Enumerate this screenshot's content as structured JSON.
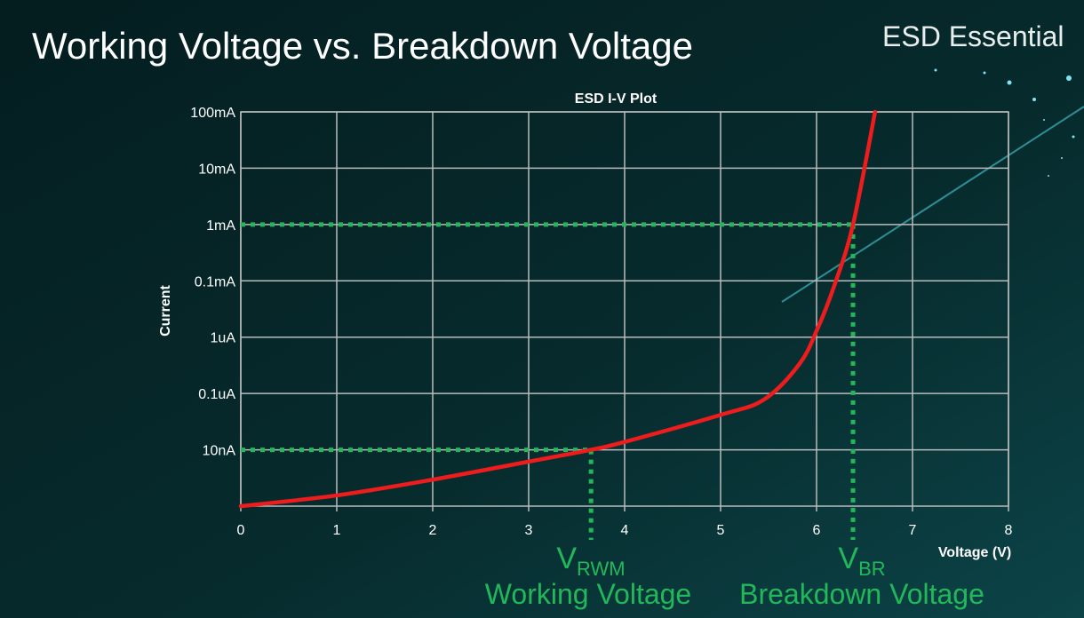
{
  "slide": {
    "title": "Working Voltage vs. Breakdown Voltage",
    "brand": "ESD Essential"
  },
  "colors": {
    "background": "#062628",
    "curve": "#ee1c1c",
    "annotation": "#22b85a",
    "grid": "#b8bcbc"
  },
  "chart_data": {
    "type": "line",
    "title": "ESD I-V Plot",
    "xlabel": "Voltage (V)",
    "ylabel": "Current",
    "xlim": [
      0,
      8
    ],
    "x_ticks": [
      0,
      1,
      2,
      3,
      4,
      5,
      6,
      7,
      8
    ],
    "y_scale": "log",
    "ylim": [
      0,
      7
    ],
    "y_ticks": [
      {
        "value": 1,
        "label": "10nA"
      },
      {
        "value": 2,
        "label": "0.1uA"
      },
      {
        "value": 3,
        "label": "1uA"
      },
      {
        "value": 4,
        "label": "0.1mA"
      },
      {
        "value": 5,
        "label": "1mA"
      },
      {
        "value": 6,
        "label": "10mA"
      },
      {
        "value": 7,
        "label": "100mA"
      }
    ],
    "grid": true,
    "series": [
      {
        "x": [
          0,
          1.0,
          2.0,
          3.0,
          3.65,
          4.0,
          5.0,
          5.45,
          5.82,
          6.01,
          6.19,
          6.38,
          6.61
        ],
        "y": [
          0,
          0.19,
          0.47,
          0.79,
          1.0,
          1.14,
          1.62,
          1.89,
          2.52,
          3.15,
          3.94,
          5.0,
          7.0
        ]
      }
    ],
    "annotations": [
      {
        "x": 3.65,
        "y": 1,
        "label_main": "V",
        "label_sub": "RWM",
        "caption": "Working Voltage"
      },
      {
        "x": 6.38,
        "y": 5,
        "label_main": "V",
        "label_sub": "BR",
        "caption": "Breakdown Voltage"
      }
    ]
  }
}
